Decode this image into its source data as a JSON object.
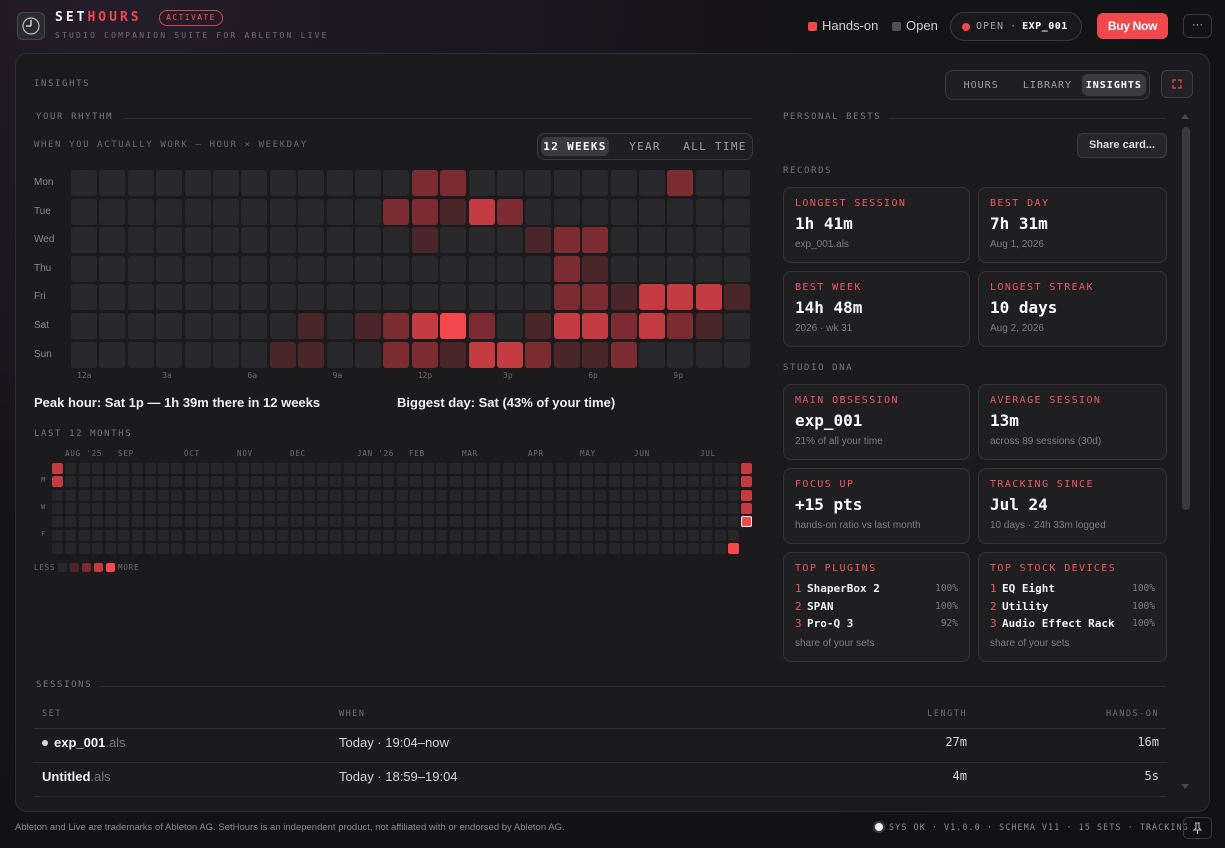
{
  "header": {
    "brand_prefix": "SET",
    "brand_accent": "HOURS",
    "badge": "ACTIVATE",
    "subtitle": "STUDIO COMPANION SUITE FOR ABLETON LIVE",
    "legend": [
      "Hands-on",
      "Open"
    ],
    "open_label": "OPEN",
    "open_separator": "·",
    "open_file": "EXP_001",
    "buy": "Buy Now",
    "more": "···"
  },
  "panel": {
    "title": "INSIGHTS",
    "tabs": [
      "HOURS",
      "LIBRARY",
      "INSIGHTS"
    ],
    "active_tab": 2
  },
  "rhythm": {
    "title": "YOUR RHYTHM",
    "subtitle": "WHEN YOU ACTUALLY WORK — HOUR × WEEKDAY",
    "ranges": [
      "12 WEEKS",
      "YEAR",
      "ALL TIME"
    ],
    "active_range": 0,
    "days": [
      "Mon",
      "Tue",
      "Wed",
      "Thu",
      "Fri",
      "Sat",
      "Sun"
    ],
    "hours": [
      "12a",
      "3a",
      "6a",
      "9a",
      "12p",
      "3p",
      "6p",
      "9p"
    ],
    "levels": [
      [
        0,
        0,
        0,
        0,
        0,
        0,
        0,
        0,
        0,
        0,
        0,
        0,
        2,
        2,
        0,
        0,
        0,
        0,
        0,
        0,
        0,
        2,
        0,
        0
      ],
      [
        0,
        0,
        0,
        0,
        0,
        0,
        0,
        0,
        0,
        0,
        0,
        2,
        2,
        1,
        3,
        2,
        0,
        0,
        0,
        0,
        0,
        0,
        0,
        0
      ],
      [
        0,
        0,
        0,
        0,
        0,
        0,
        0,
        0,
        0,
        0,
        0,
        0,
        1,
        0,
        0,
        0,
        1,
        2,
        2,
        0,
        0,
        0,
        0,
        0
      ],
      [
        0,
        0,
        0,
        0,
        0,
        0,
        0,
        0,
        0,
        0,
        0,
        0,
        0,
        0,
        0,
        0,
        0,
        2,
        1,
        0,
        0,
        0,
        0,
        0
      ],
      [
        0,
        0,
        0,
        0,
        0,
        0,
        0,
        0,
        0,
        0,
        0,
        0,
        0,
        0,
        0,
        0,
        0,
        2,
        2,
        1,
        3,
        3,
        3,
        1
      ],
      [
        0,
        0,
        0,
        0,
        0,
        0,
        0,
        0,
        1,
        0,
        1,
        2,
        3,
        4,
        2,
        0,
        1,
        3,
        3,
        2,
        3,
        2,
        1,
        0
      ],
      [
        0,
        0,
        0,
        0,
        0,
        0,
        0,
        1,
        1,
        0,
        0,
        2,
        2,
        1,
        3,
        3,
        2,
        1,
        1,
        2,
        0,
        0,
        0,
        0
      ]
    ],
    "peak": "Peak hour: Sat 1p — 1h 39m there in 12 weeks",
    "biggest": "Biggest day: Sat (43% of your time)"
  },
  "months": {
    "title": "LAST 12 MONTHS",
    "labels": [
      "AUG '25",
      "SEP",
      "OCT",
      "NOV",
      "DEC",
      "JAN '26",
      "FEB",
      "MAR",
      "APR",
      "MAY",
      "JUN",
      "JUL"
    ],
    "day_labels": [
      "M",
      "W",
      "F"
    ],
    "weeks": [
      [
        3,
        3,
        0,
        0,
        0,
        0,
        0
      ],
      [
        0,
        0,
        0,
        0,
        0,
        0,
        0
      ],
      [
        0,
        0,
        0,
        0,
        0,
        0,
        0
      ],
      [
        0,
        0,
        0,
        0,
        0,
        0,
        0
      ],
      [
        0,
        0,
        0,
        0,
        0,
        0,
        0
      ],
      [
        0,
        0,
        0,
        0,
        0,
        0,
        0
      ],
      [
        0,
        0,
        0,
        0,
        0,
        0,
        0
      ],
      [
        0,
        0,
        0,
        0,
        0,
        0,
        0
      ],
      [
        0,
        0,
        0,
        0,
        0,
        0,
        0
      ],
      [
        0,
        0,
        0,
        0,
        0,
        0,
        0
      ],
      [
        0,
        0,
        0,
        0,
        0,
        0,
        0
      ],
      [
        0,
        0,
        0,
        0,
        0,
        0,
        0
      ],
      [
        0,
        0,
        0,
        0,
        0,
        0,
        0
      ],
      [
        0,
        0,
        0,
        0,
        0,
        0,
        0
      ],
      [
        0,
        0,
        0,
        0,
        0,
        0,
        0
      ],
      [
        0,
        0,
        0,
        0,
        0,
        0,
        0
      ],
      [
        0,
        0,
        0,
        0,
        0,
        0,
        0
      ],
      [
        0,
        0,
        0,
        0,
        0,
        0,
        0
      ],
      [
        0,
        0,
        0,
        0,
        0,
        0,
        0
      ],
      [
        0,
        0,
        0,
        0,
        0,
        0,
        0
      ],
      [
        0,
        0,
        0,
        0,
        0,
        0,
        0
      ],
      [
        0,
        0,
        0,
        0,
        0,
        0,
        0
      ],
      [
        0,
        0,
        0,
        0,
        0,
        0,
        0
      ],
      [
        0,
        0,
        0,
        0,
        0,
        0,
        0
      ],
      [
        0,
        0,
        0,
        0,
        0,
        0,
        0
      ],
      [
        0,
        0,
        0,
        0,
        0,
        0,
        0
      ],
      [
        0,
        0,
        0,
        0,
        0,
        0,
        0
      ],
      [
        0,
        0,
        0,
        0,
        0,
        0,
        0
      ],
      [
        0,
        0,
        0,
        0,
        0,
        0,
        0
      ],
      [
        0,
        0,
        0,
        0,
        0,
        0,
        0
      ],
      [
        0,
        0,
        0,
        0,
        0,
        0,
        0
      ],
      [
        0,
        0,
        0,
        0,
        0,
        0,
        0
      ],
      [
        0,
        0,
        0,
        0,
        0,
        0,
        0
      ],
      [
        0,
        0,
        0,
        0,
        0,
        0,
        0
      ],
      [
        0,
        0,
        0,
        0,
        0,
        0,
        0
      ],
      [
        0,
        0,
        0,
        0,
        0,
        0,
        0
      ],
      [
        0,
        0,
        0,
        0,
        0,
        0,
        0
      ],
      [
        0,
        0,
        0,
        0,
        0,
        0,
        0
      ],
      [
        0,
        0,
        0,
        0,
        0,
        0,
        0
      ],
      [
        0,
        0,
        0,
        0,
        0,
        0,
        0
      ],
      [
        0,
        0,
        0,
        0,
        0,
        0,
        0
      ],
      [
        0,
        0,
        0,
        0,
        0,
        0,
        0
      ],
      [
        0,
        0,
        0,
        0,
        0,
        0,
        0
      ],
      [
        0,
        0,
        0,
        0,
        0,
        0,
        0
      ],
      [
        0,
        0,
        0,
        0,
        0,
        0,
        0
      ],
      [
        0,
        0,
        0,
        0,
        0,
        0,
        0
      ],
      [
        0,
        0,
        0,
        0,
        0,
        0,
        0
      ],
      [
        0,
        0,
        0,
        0,
        0,
        0,
        0
      ],
      [
        0,
        0,
        0,
        0,
        0,
        0,
        0
      ],
      [
        0,
        0,
        0,
        0,
        0,
        0,
        0
      ],
      [
        0,
        0,
        0,
        0,
        0,
        0,
        0
      ],
      [
        0,
        0,
        0,
        0,
        0,
        0,
        4
      ],
      [
        3,
        3,
        3,
        3,
        4
      ]
    ],
    "less": "LESS",
    "more": "MORE",
    "scale": [
      0,
      1,
      2,
      3,
      4
    ]
  },
  "bests": {
    "title": "PERSONAL BESTS",
    "share": "Share card...",
    "records_title": "RECORDS",
    "records": [
      {
        "label": "LONGEST SESSION",
        "value": "1h 41m",
        "sub": "exp_001.als"
      },
      {
        "label": "BEST DAY",
        "value": "7h 31m",
        "sub": "Aug 1, 2026"
      },
      {
        "label": "BEST WEEK",
        "value": "14h 48m",
        "sub": "2026 · wk 31"
      },
      {
        "label": "LONGEST STREAK",
        "value": "10 days",
        "sub": "Aug 2, 2026"
      }
    ],
    "dna_title": "STUDIO DNA",
    "dna": [
      {
        "label": "MAIN OBSESSION",
        "value": "exp_001",
        "sub": "21% of all your time"
      },
      {
        "label": "AVERAGE SESSION",
        "value": "13m",
        "sub": "across 89 sessions (30d)"
      },
      {
        "label": "FOCUS UP",
        "value": "+15 pts",
        "sub": "hands-on ratio vs last month"
      },
      {
        "label": "TRACKING SINCE",
        "value": "Jul 24",
        "sub": "10 days · 24h 33m logged"
      }
    ],
    "lists": [
      {
        "label": "TOP PLUGINS",
        "items": [
          {
            "rank": "1",
            "name": "ShaperBox 2",
            "share": "100%"
          },
          {
            "rank": "2",
            "name": "SPAN",
            "share": "100%"
          },
          {
            "rank": "3",
            "name": "Pro-Q 3",
            "share": "92%"
          }
        ],
        "foot": "share of your sets"
      },
      {
        "label": "TOP STOCK DEVICES",
        "items": [
          {
            "rank": "1",
            "name": "EQ Eight",
            "share": "100%"
          },
          {
            "rank": "2",
            "name": "Utility",
            "share": "100%"
          },
          {
            "rank": "3",
            "name": "Audio Effect Rack",
            "share": "100%"
          }
        ],
        "foot": "share of your sets"
      }
    ]
  },
  "sessions": {
    "title": "SESSIONS",
    "headers": [
      "SET",
      "WHEN",
      "LENGTH",
      "HANDS-ON"
    ],
    "rows": [
      {
        "name": "exp_001",
        "ext": ".als",
        "live": true,
        "when": "Today · 19:04–now",
        "length": "27m",
        "hands_on": "16m"
      },
      {
        "name": "Untitled",
        "ext": ".als",
        "live": false,
        "when": "Today · 18:59–19:04",
        "length": "4m",
        "hands_on": "5s"
      }
    ]
  },
  "footer": {
    "disclaimer": "Ableton and Live are trademarks of Ableton AG. SetHours is an independent product, not affiliated with or endorsed by Ableton AG.",
    "status": "SYS OK · V1.0.0 · SCHEMA V11 · 15 SETS · TRACKING"
  }
}
